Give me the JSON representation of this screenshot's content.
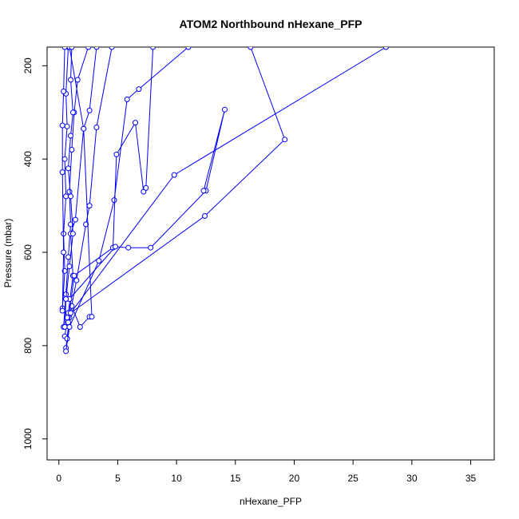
{
  "chart_data": {
    "type": "scatter",
    "title": "ATOM2 Northbound nHexane_PFP",
    "xlabel": "nHexane_PFP",
    "ylabel": "Pressure (mbar)",
    "xlim": [
      -1,
      37
    ],
    "ylim": [
      1045,
      160
    ],
    "y_reversed": true,
    "x_ticks": [
      0,
      5,
      10,
      15,
      20,
      25,
      30,
      35
    ],
    "y_ticks": [
      200,
      400,
      600,
      800,
      1000
    ],
    "grid": false,
    "legend": "none",
    "colors": {
      "series": "#0000ff",
      "axis": "#000000",
      "background": "#ffffff"
    },
    "series": [
      {
        "points": [
          {
            "x": 0.3,
            "y": 720
          },
          {
            "x": 0.5,
            "y": 640
          },
          {
            "x": 0.4,
            "y": 560
          },
          {
            "x": 0.6,
            "y": 480
          },
          {
            "x": 0.5,
            "y": 400
          },
          {
            "x": 0.7,
            "y": 330
          },
          {
            "x": 0.6,
            "y": 260
          },
          {
            "x": 0.8,
            "y": 160
          }
        ]
      },
      {
        "points": [
          {
            "x": 0.4,
            "y": 760
          },
          {
            "x": 0.6,
            "y": 690
          },
          {
            "x": 0.8,
            "y": 610
          },
          {
            "x": 1.0,
            "y": 540
          },
          {
            "x": 0.9,
            "y": 470
          },
          {
            "x": 1.1,
            "y": 380
          },
          {
            "x": 1.3,
            "y": 300
          },
          {
            "x": 1.6,
            "y": 230
          },
          {
            "x": 2.5,
            "y": 160
          }
        ]
      },
      {
        "points": [
          {
            "x": 0.5,
            "y": 780
          },
          {
            "x": 0.8,
            "y": 730
          },
          {
            "x": 1.2,
            "y": 650
          },
          {
            "x": 1.0,
            "y": 560
          },
          {
            "x": 1.4,
            "y": 530
          },
          {
            "x": 2.1,
            "y": 335
          },
          {
            "x": 2.6,
            "y": 296
          },
          {
            "x": 3.2,
            "y": 160
          }
        ]
      },
      {
        "points": [
          {
            "x": 0.6,
            "y": 805
          },
          {
            "x": 0.9,
            "y": 740
          },
          {
            "x": 1.5,
            "y": 660
          },
          {
            "x": 2.3,
            "y": 540
          },
          {
            "x": 2.6,
            "y": 500
          },
          {
            "x": 3.2,
            "y": 332
          },
          {
            "x": 4.5,
            "y": 160
          }
        ]
      },
      {
        "points": [
          {
            "x": 0.7,
            "y": 785
          },
          {
            "x": 1.1,
            "y": 715
          },
          {
            "x": 1.8,
            "y": 760
          },
          {
            "x": 2.6,
            "y": 738
          },
          {
            "x": 2.8,
            "y": 738
          },
          {
            "x": 2.1,
            "y": 335
          },
          {
            "x": 0.9,
            "y": 160
          }
        ]
      },
      {
        "points": [
          {
            "x": 0.6,
            "y": 812
          },
          {
            "x": 0.9,
            "y": 760
          },
          {
            "x": 3.4,
            "y": 618
          },
          {
            "x": 4.7,
            "y": 488
          },
          {
            "x": 5.8,
            "y": 272
          },
          {
            "x": 6.8,
            "y": 250
          },
          {
            "x": 11.0,
            "y": 160
          }
        ]
      },
      {
        "points": [
          {
            "x": 0.8,
            "y": 750
          },
          {
            "x": 1.3,
            "y": 650
          },
          {
            "x": 4.6,
            "y": 590
          },
          {
            "x": 4.9,
            "y": 390
          },
          {
            "x": 6.5,
            "y": 322
          },
          {
            "x": 7.2,
            "y": 470
          },
          {
            "x": 7.4,
            "y": 462
          },
          {
            "x": 8.0,
            "y": 160
          }
        ]
      },
      {
        "points": [
          {
            "x": 0.9,
            "y": 700
          },
          {
            "x": 4.8,
            "y": 588
          },
          {
            "x": 5.9,
            "y": 590
          },
          {
            "x": 7.8,
            "y": 590
          },
          {
            "x": 12.5,
            "y": 468
          },
          {
            "x": 14.1,
            "y": 294
          },
          {
            "x": 12.3,
            "y": 468
          }
        ]
      },
      {
        "points": [
          {
            "x": 0.7,
            "y": 740
          },
          {
            "x": 9.8,
            "y": 434
          },
          {
            "x": 27.8,
            "y": 160
          }
        ]
      },
      {
        "points": [
          {
            "x": 1.0,
            "y": 730
          },
          {
            "x": 12.4,
            "y": 522
          },
          {
            "x": 19.2,
            "y": 358
          },
          {
            "x": 16.3,
            "y": 160
          }
        ]
      },
      {
        "points": [
          {
            "x": 0.3,
            "y": 725
          },
          {
            "x": 0.4,
            "y": 600
          },
          {
            "x": 0.3,
            "y": 428
          },
          {
            "x": 0.3,
            "y": 328
          },
          {
            "x": 0.4,
            "y": 255
          },
          {
            "x": 0.5,
            "y": 160
          }
        ]
      },
      {
        "points": [
          {
            "x": 0.5,
            "y": 760
          },
          {
            "x": 0.6,
            "y": 700
          },
          {
            "x": 0.9,
            "y": 630
          },
          {
            "x": 1.2,
            "y": 560
          },
          {
            "x": 1.0,
            "y": 480
          },
          {
            "x": 0.8,
            "y": 420
          },
          {
            "x": 1.0,
            "y": 350
          },
          {
            "x": 1.2,
            "y": 300
          },
          {
            "x": 1.0,
            "y": 230
          },
          {
            "x": 1.1,
            "y": 160
          }
        ]
      }
    ]
  }
}
